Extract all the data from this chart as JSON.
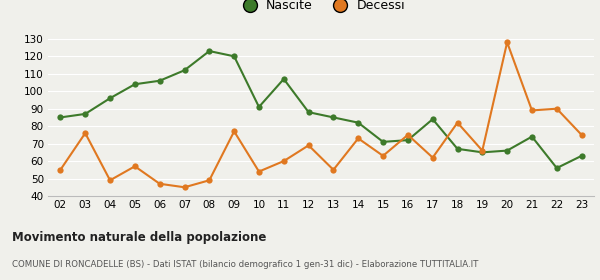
{
  "years": [
    "02",
    "03",
    "04",
    "05",
    "06",
    "07",
    "08",
    "09",
    "10",
    "11",
    "12",
    "13",
    "14",
    "15",
    "16",
    "17",
    "18",
    "19",
    "20",
    "21",
    "22",
    "23"
  ],
  "nascite": [
    85,
    87,
    96,
    104,
    106,
    112,
    123,
    120,
    91,
    107,
    88,
    85,
    82,
    71,
    72,
    84,
    67,
    65,
    66,
    74,
    56,
    63
  ],
  "decessi": [
    55,
    76,
    49,
    57,
    47,
    45,
    49,
    77,
    54,
    60,
    69,
    55,
    73,
    63,
    75,
    62,
    82,
    66,
    128,
    89,
    90,
    75
  ],
  "nascite_color": "#3d7a2a",
  "decessi_color": "#e07820",
  "ylim": [
    40,
    133
  ],
  "yticks": [
    40,
    50,
    60,
    70,
    80,
    90,
    100,
    110,
    120,
    130
  ],
  "title": "Movimento naturale della popolazione",
  "subtitle": "COMUNE DI RONCADELLE (BS) - Dati ISTAT (bilancio demografico 1 gen-31 dic) - Elaborazione TUTTITALIA.IT",
  "legend_nascite": "Nascite",
  "legend_decessi": "Decessi",
  "bg_color": "#f0f0eb",
  "grid_color": "#ffffff",
  "line_width": 1.5,
  "marker_size": 4.5
}
